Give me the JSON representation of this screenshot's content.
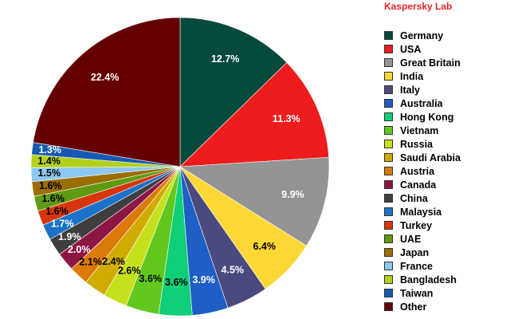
{
  "brand": "Kaspersky Lab",
  "chart_data": {
    "type": "pie",
    "title": "",
    "legend_position": "right",
    "start_angle_deg": 0,
    "direction": "clockwise",
    "slices": [
      {
        "name": "Germany",
        "value": 12.7,
        "label": "12.7%",
        "color": "#06493d",
        "label_color": "#ffffff"
      },
      {
        "name": "USA",
        "value": 11.3,
        "label": "11.3%",
        "color": "#ee1c1c",
        "label_color": "#ffffff"
      },
      {
        "name": "Great Britain",
        "value": 9.9,
        "label": "9.9%",
        "color": "#949494",
        "label_color": "#ffffff"
      },
      {
        "name": "India",
        "value": 6.4,
        "label": "6.4%",
        "color": "#fdd835",
        "label_color": "#000000"
      },
      {
        "name": "Italy",
        "value": 4.5,
        "label": "4.5%",
        "color": "#4b4a7e",
        "label_color": "#ffffff"
      },
      {
        "name": "Australia",
        "value": 3.9,
        "label": "3.9%",
        "color": "#1d5fc4",
        "label_color": "#ffffff"
      },
      {
        "name": "Hong Kong",
        "value": 3.6,
        "label": "3.6%",
        "color": "#0ecf78",
        "label_color": "#000000"
      },
      {
        "name": "Vietnam",
        "value": 3.6,
        "label": "3.6%",
        "color": "#62c81e",
        "label_color": "#000000"
      },
      {
        "name": "Russia",
        "value": 2.6,
        "label": "2.6%",
        "color": "#c6e01c",
        "label_color": "#000000"
      },
      {
        "name": "Saudi Arabia",
        "value": 2.4,
        "label": "2.4%",
        "color": "#d0ab00",
        "label_color": "#000000"
      },
      {
        "name": "Austria",
        "value": 2.1,
        "label": "2.1%",
        "color": "#db7a06",
        "label_color": "#000000"
      },
      {
        "name": "Canada",
        "value": 2.0,
        "label": "2.0%",
        "color": "#8d1546",
        "label_color": "#ffffff"
      },
      {
        "name": "China",
        "value": 1.9,
        "label": "1.9%",
        "color": "#3e3e3e",
        "label_color": "#ffffff"
      },
      {
        "name": "Malaysia",
        "value": 1.7,
        "label": "1.7%",
        "color": "#1a72c9",
        "label_color": "#ffffff"
      },
      {
        "name": "Turkey",
        "value": 1.6,
        "label": "1.6%",
        "color": "#d8350c",
        "label_color": "#000000"
      },
      {
        "name": "UAE",
        "value": 1.6,
        "label": "1.6%",
        "color": "#5f9a13",
        "label_color": "#000000"
      },
      {
        "name": "Japan",
        "value": 1.6,
        "label": "1.6%",
        "color": "#9a6e00",
        "label_color": "#000000"
      },
      {
        "name": "France",
        "value": 1.5,
        "label": "1.5%",
        "color": "#8cc8f2",
        "label_color": "#000000"
      },
      {
        "name": "Bangladesh",
        "value": 1.4,
        "label": "1.4%",
        "color": "#b3d11a",
        "label_color": "#000000"
      },
      {
        "name": "Taiwan",
        "value": 1.3,
        "label": "1.3%",
        "color": "#1759b3",
        "label_color": "#ffffff"
      },
      {
        "name": "Other",
        "value": 22.4,
        "label": "22.4%",
        "color": "#650000",
        "label_color": "#ffffff"
      }
    ]
  }
}
